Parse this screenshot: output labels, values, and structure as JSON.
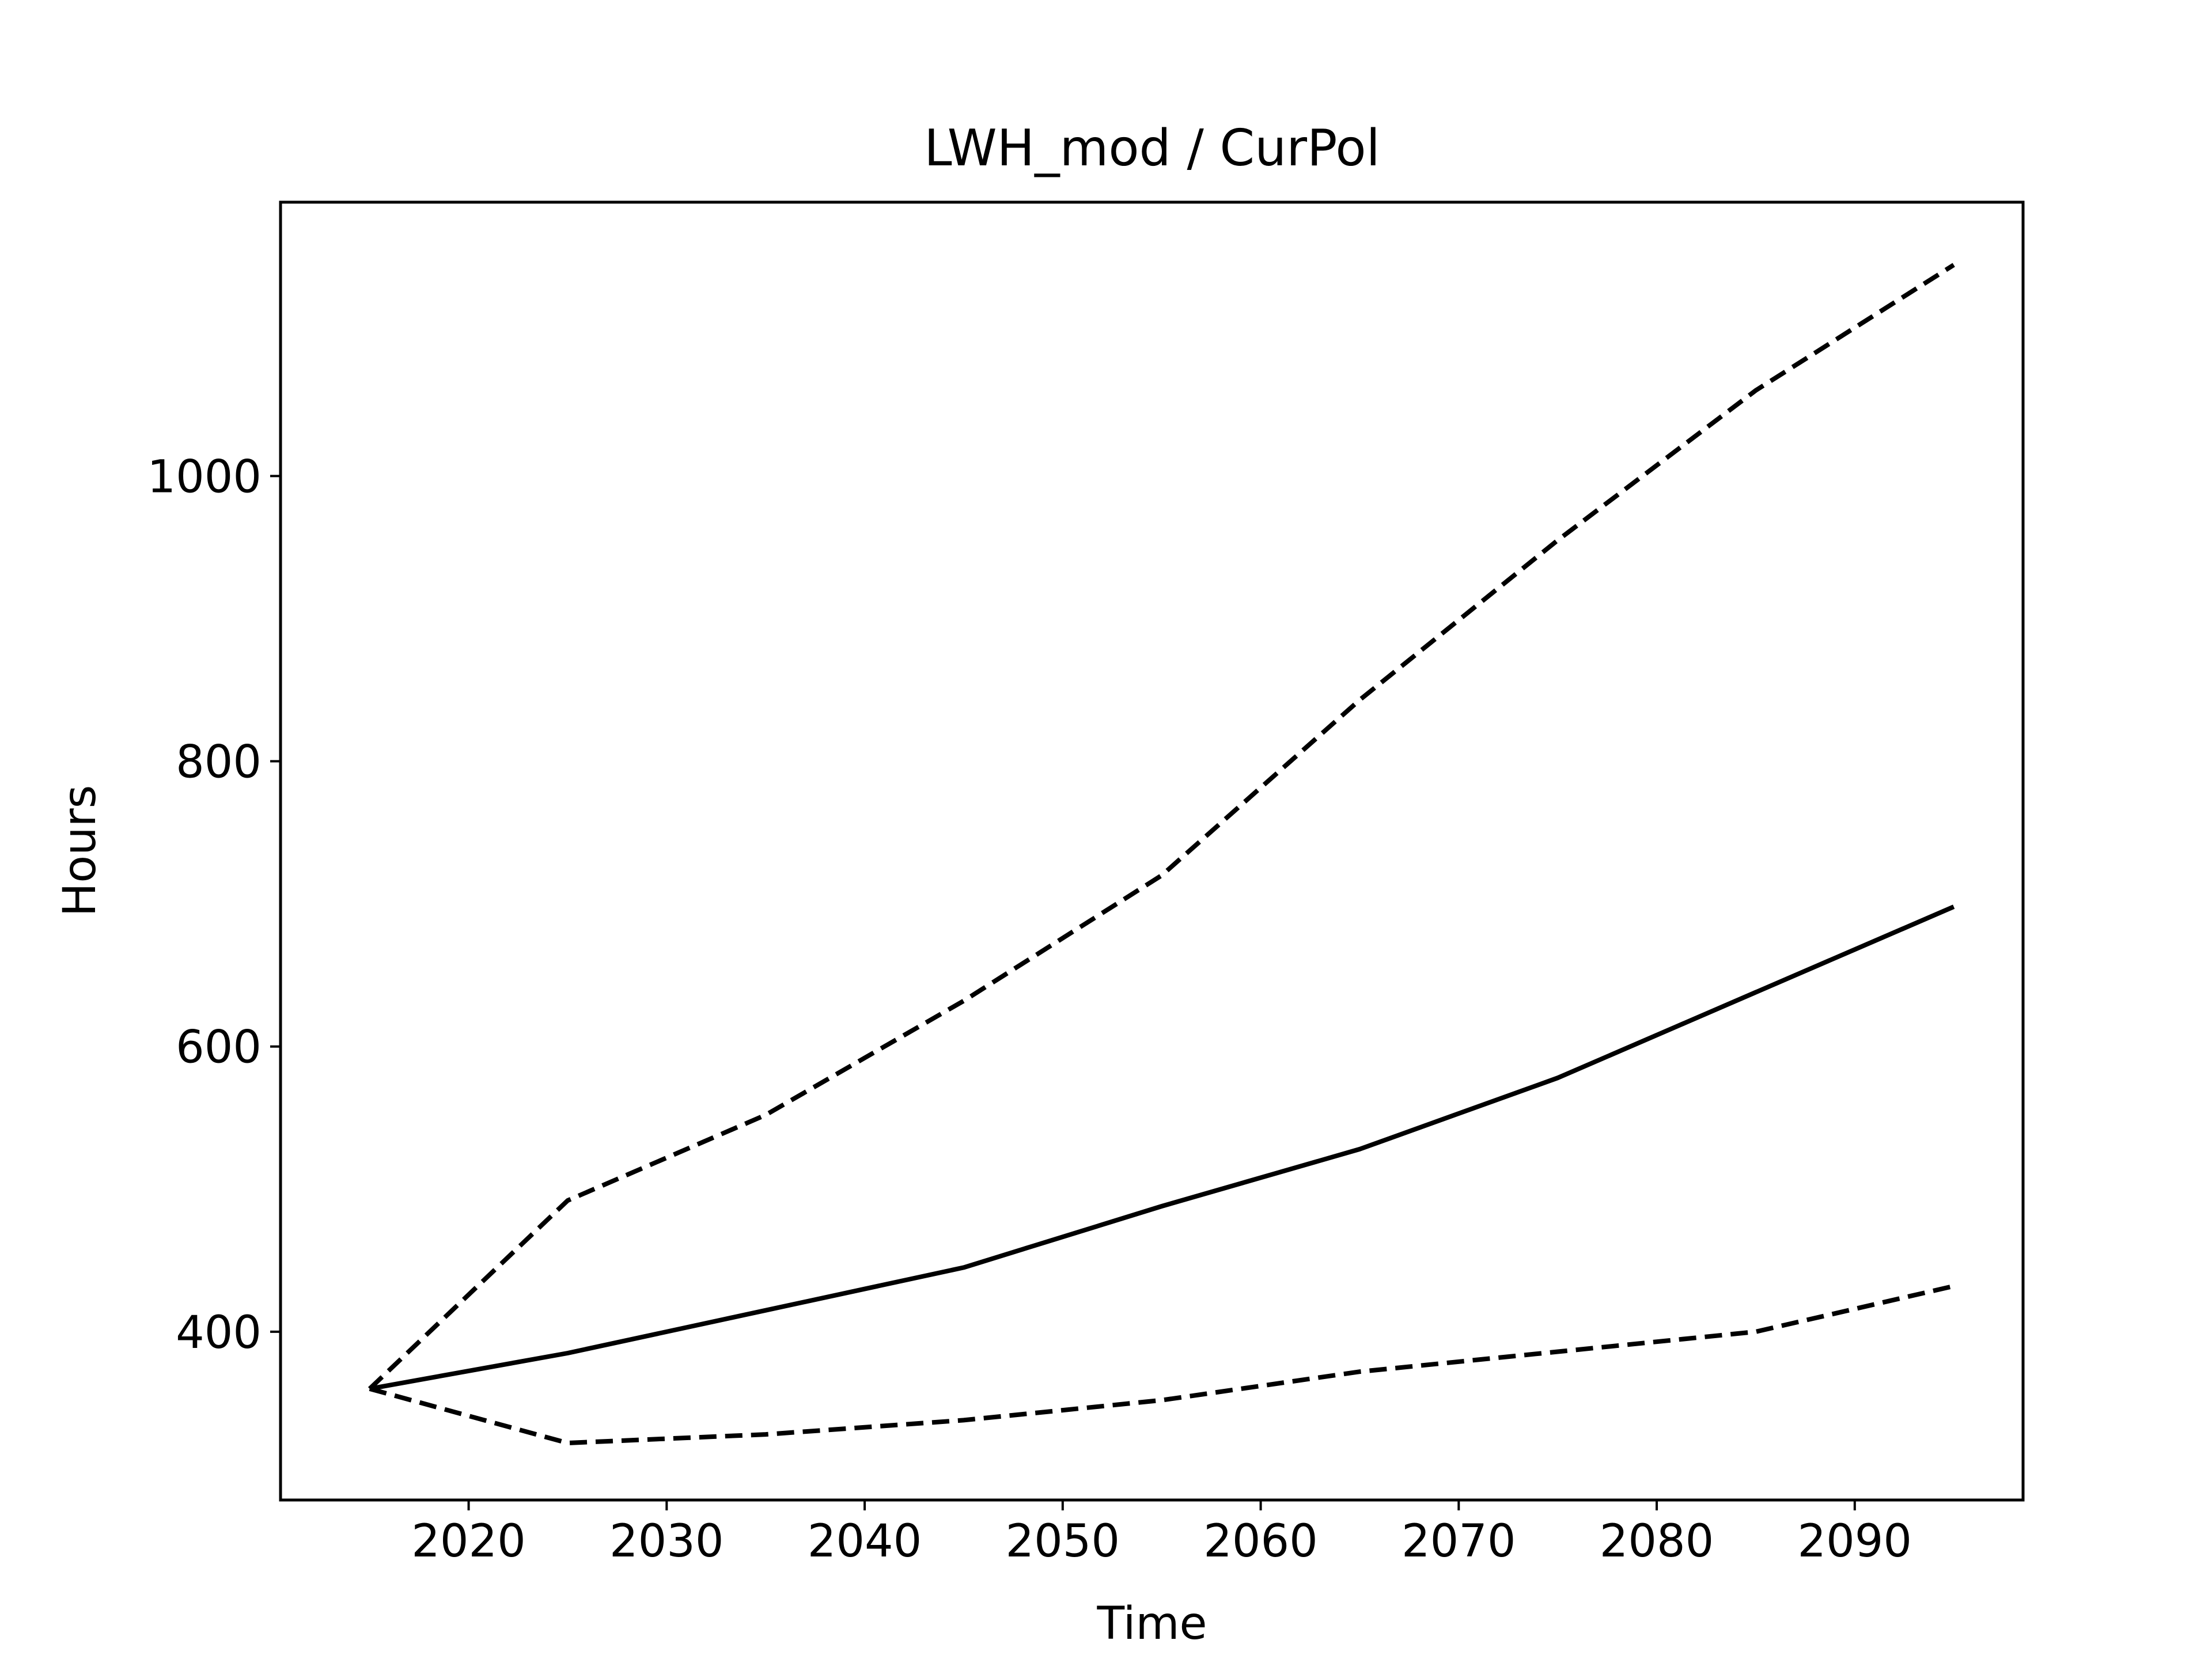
{
  "chart_data": {
    "type": "line",
    "title": "LWH_mod / CurPol",
    "xlabel": "Time",
    "ylabel": "Hours",
    "xlim": [
      2010.5,
      2098.5
    ],
    "ylim": [
      282,
      1192
    ],
    "xticks": [
      2020,
      2030,
      2040,
      2050,
      2060,
      2070,
      2080,
      2090
    ],
    "yticks": [
      400,
      600,
      800,
      1000
    ],
    "grid": false,
    "x": [
      2015,
      2025,
      2035,
      2045,
      2055,
      2065,
      2075,
      2085,
      2095
    ],
    "series": [
      {
        "style": "solid",
        "color": "#000000",
        "values": [
          360,
          385,
          415,
          445,
          488,
          528,
          578,
          638,
          698
        ]
      },
      {
        "style": "dashed",
        "color": "#000000",
        "values": [
          360,
          492,
          552,
          632,
          720,
          843,
          955,
          1060,
          1148
        ]
      },
      {
        "style": "dashed",
        "color": "#000000",
        "values": [
          360,
          322,
          328,
          338,
          352,
          372,
          386,
          400,
          432
        ]
      }
    ]
  }
}
